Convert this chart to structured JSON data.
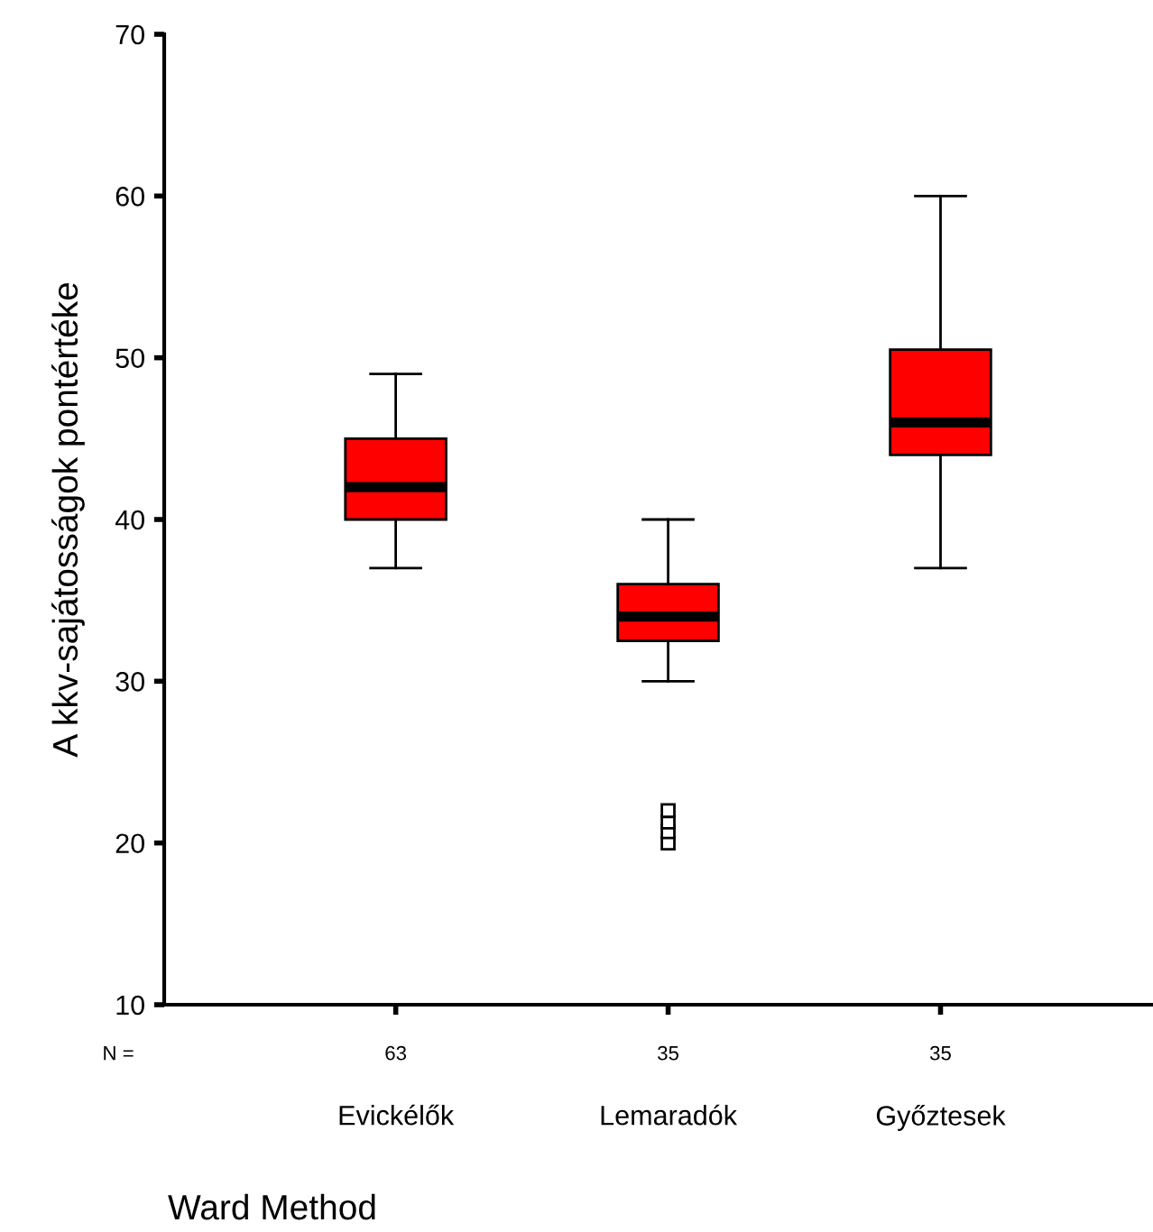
{
  "chart_data": {
    "type": "box",
    "categories": [
      "Evickélők",
      "Lemaradók",
      "Győztesek"
    ],
    "boxes": [
      {
        "low": 37,
        "q1": 40,
        "median": 42,
        "q3": 45,
        "high": 49
      },
      {
        "low": 30,
        "q1": 32.5,
        "median": 34,
        "q3": 36,
        "high": 40,
        "outliers": [
          20,
          20.7,
          21.3,
          22
        ]
      },
      {
        "low": 37,
        "q1": 44,
        "median": 46,
        "q3": 50.5,
        "high": 60
      }
    ],
    "color": "#ff0000",
    "marker": "square",
    "ylim": [
      10,
      70
    ],
    "yticks": [
      10,
      20,
      30,
      40,
      50,
      60,
      70
    ],
    "ylabel": "A kkv-sajátosságok pontértéke",
    "xlabel": "Ward Method",
    "grid": false,
    "legend": false,
    "annotations": [
      "N =",
      "63",
      "35",
      "35"
    ]
  }
}
